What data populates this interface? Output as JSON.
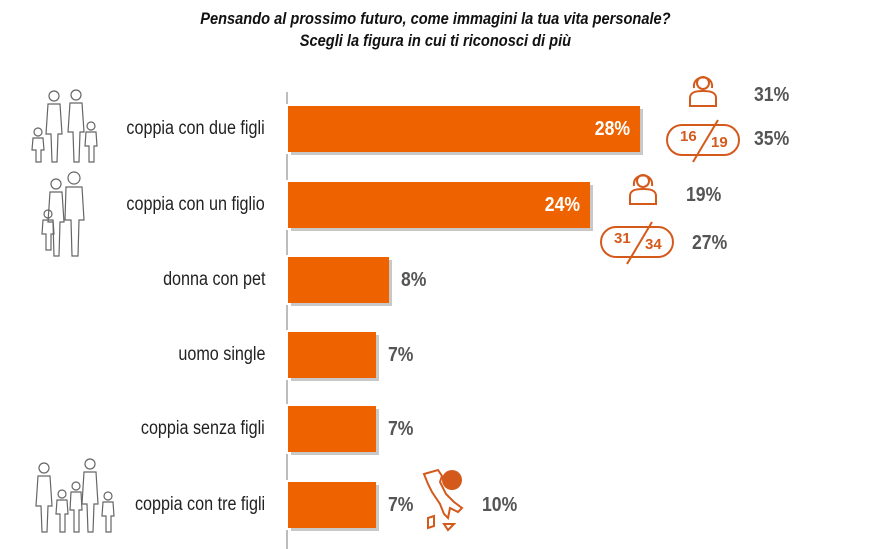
{
  "title": {
    "line1": "Pensando al prossimo futuro, come immagini la tua vita personale?",
    "line2": "Scegli la figura in cui ti riconosci di più"
  },
  "chart_data": {
    "type": "bar",
    "orientation": "horizontal",
    "categories": [
      "coppia con due figli",
      "coppia con un figlio",
      "donna con pet",
      "uomo single",
      "coppia senza figli",
      "coppia con tre figli"
    ],
    "values": [
      28,
      24,
      8,
      7,
      7,
      7
    ],
    "value_labels": [
      "28%",
      "24%",
      "8%",
      "7%",
      "7%",
      "7%"
    ],
    "xlim": [
      0,
      30
    ],
    "bar_color": "#ee6300",
    "annotations": {
      "coppia_con_due_figli": {
        "women": "31%",
        "age_16_19": "35%",
        "age_from": "16",
        "age_to": "19"
      },
      "coppia_con_un_figlio": {
        "women": "19%",
        "age_31_34": "27%",
        "age_from": "31",
        "age_to": "34"
      },
      "coppia_con_tre_figli": {
        "south_italy": "10%"
      }
    }
  },
  "icons": {
    "family_four": "family-of-four-icon",
    "family_three": "family-of-three-icon",
    "family_five": "family-of-five-icon",
    "woman": "woman-icon",
    "italy_map": "italy-map-icon"
  },
  "colors": {
    "accent": "#ee6300",
    "annotation": "#d45a1c"
  }
}
